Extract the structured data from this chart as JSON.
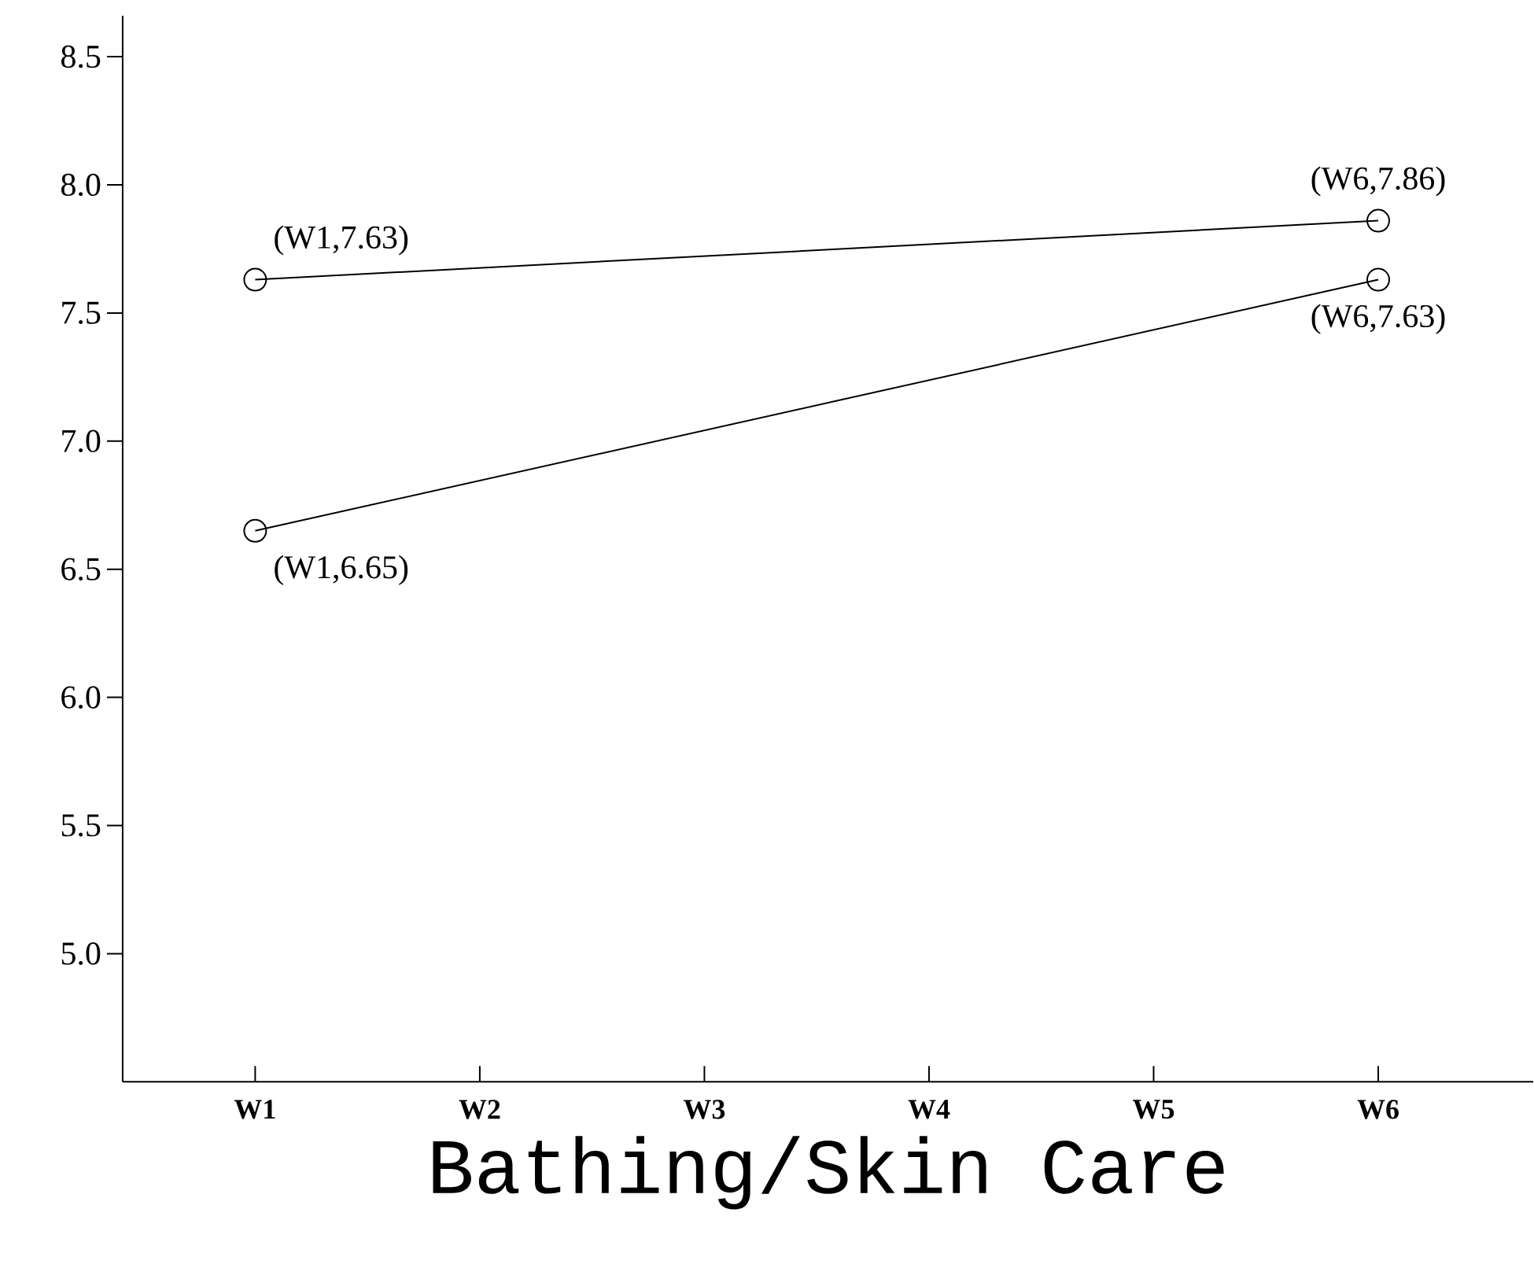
{
  "chart_data": {
    "type": "line",
    "xlabel": "Bathing/Skin Care",
    "categories": [
      "W1",
      "W2",
      "W3",
      "W4",
      "W5",
      "W6"
    ],
    "series": [
      {
        "color": "#000000",
        "values": [
          7.63,
          null,
          null,
          null,
          null,
          7.86
        ]
      },
      {
        "color": "#000000",
        "values": [
          6.65,
          null,
          null,
          null,
          null,
          7.63
        ]
      }
    ],
    "ylim": [
      4.5,
      8.66
    ],
    "yticks": [
      {
        "value": 5,
        "label": "5.0"
      },
      {
        "value": 5.5,
        "label": "5.5"
      },
      {
        "value": 6,
        "label": "6.0"
      },
      {
        "value": 6.5,
        "label": "6.5"
      },
      {
        "value": 7,
        "label": "7.0"
      },
      {
        "value": 7.5,
        "label": "7.5"
      },
      {
        "value": 8,
        "label": "8.0"
      },
      {
        "value": 8.5,
        "label": "8.5"
      }
    ],
    "annotations": [
      {
        "text": "(W1,7.63)",
        "x": "W1",
        "y": 7.63
      },
      {
        "text": "(W6,7.86)",
        "x": "W6",
        "y": 7.86
      },
      {
        "text": "(W1,6.65)",
        "x": "W1",
        "y": 6.65
      },
      {
        "text": "(W6,7.63)",
        "x": "W6",
        "y": 7.63
      }
    ],
    "marker": "circle",
    "line_style": "solid",
    "grid": false
  }
}
